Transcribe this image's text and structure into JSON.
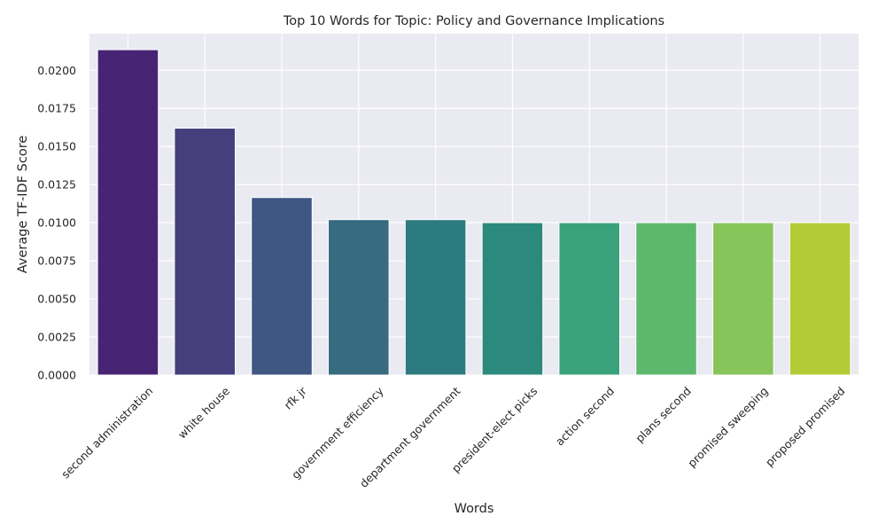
{
  "chart_data": {
    "type": "bar",
    "title": "Top 10 Words for Topic: Policy and Governance Implications",
    "xlabel": "Words",
    "ylabel": "Average TF-IDF Score",
    "categories": [
      "second administration",
      "white house",
      "rfk jr",
      "government efficiency",
      "department government",
      "president-elect picks",
      "action second",
      "plans second",
      "promised sweeping",
      "proposed promised"
    ],
    "values": [
      0.02135,
      0.0162,
      0.01165,
      0.0102,
      0.0102,
      0.01,
      0.01,
      0.01,
      0.01,
      0.01
    ],
    "colors": [
      "#482475",
      "#453f7c",
      "#3e5783",
      "#366b80",
      "#2c7b80",
      "#2c8a7c",
      "#3aa27b",
      "#5db86e",
      "#87c45a",
      "#b3cb37"
    ],
    "ylim": [
      0,
      0.0224
    ],
    "yticks": [
      "0.0000",
      "0.0025",
      "0.0050",
      "0.0075",
      "0.0100",
      "0.0125",
      "0.0150",
      "0.0175",
      "0.0200"
    ],
    "ytick_values": [
      0,
      0.0025,
      0.005,
      0.0075,
      0.01,
      0.0125,
      0.015,
      0.0175,
      0.02
    ],
    "background": "#eaeaf2",
    "grid": true,
    "legend": "none"
  }
}
